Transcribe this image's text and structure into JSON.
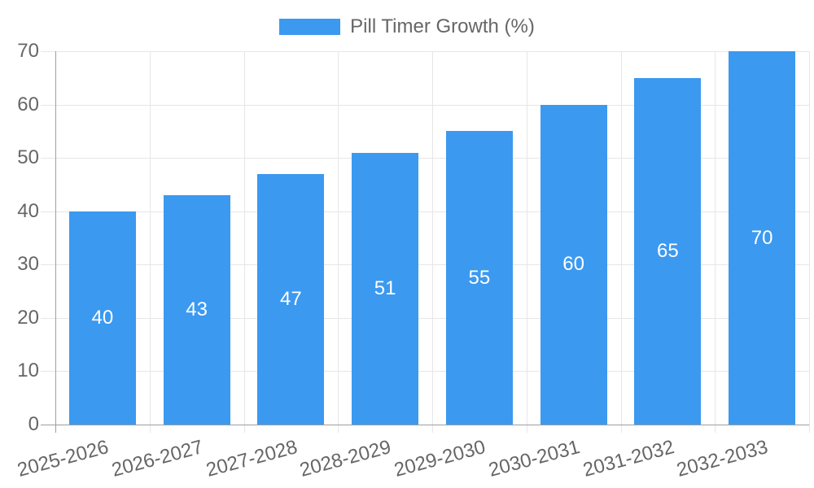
{
  "legend": {
    "label": "Pill Timer Growth (%)"
  },
  "chart_data": {
    "type": "bar",
    "title": "Pill Timer Growth (%)",
    "categories": [
      "2025-2026",
      "2026-2027",
      "2027-2028",
      "2028-2029",
      "2029-2030",
      "2030-2031",
      "2031-2032",
      "2032-2033"
    ],
    "values": [
      40,
      43,
      47,
      51,
      55,
      60,
      65,
      70
    ],
    "xlabel": "",
    "ylabel": "",
    "ylim": [
      0,
      70
    ],
    "yticks": [
      0,
      10,
      20,
      30,
      40,
      50,
      60,
      70
    ],
    "grid": true,
    "legend_position": "top",
    "value_labels": "inside-middle",
    "x_label_rotation_deg": -15,
    "colors": {
      "bar": "#3B99F0",
      "value_label": "#FFFFFF",
      "tick_text": "#666666",
      "legend_text": "#666666",
      "grid": "#E6E6E6",
      "axis": "#9E9E9E"
    }
  }
}
